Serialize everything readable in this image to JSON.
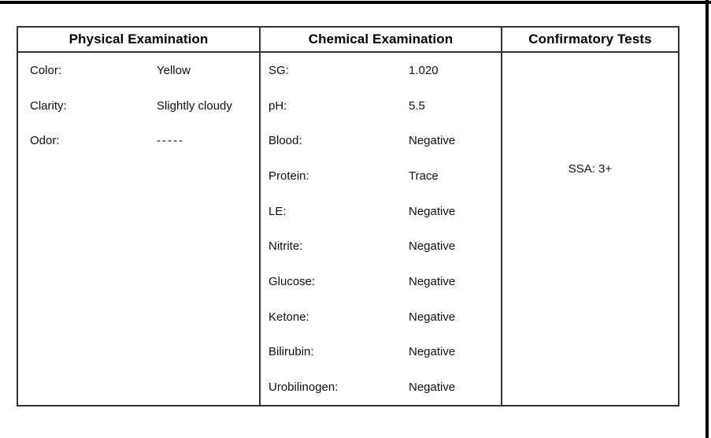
{
  "colors": {
    "frame_line": "#000000",
    "table_border": "#333333",
    "text": "#111111"
  },
  "table": {
    "physical": {
      "header": "Physical Examination",
      "rows": [
        {
          "label": "Color:",
          "value": "Yellow"
        },
        {
          "label": "Clarity:",
          "value": "Slightly cloudy"
        },
        {
          "label": "Odor:",
          "value": "-----"
        }
      ]
    },
    "chemical": {
      "header": "Chemical Examination",
      "rows": [
        {
          "label": "SG:",
          "value": "1.020"
        },
        {
          "label": "pH:",
          "value": "5.5"
        },
        {
          "label": "Blood:",
          "value": "Negative"
        },
        {
          "label": "Protein:",
          "value": "Trace"
        },
        {
          "label": "LE:",
          "value": "Negative"
        },
        {
          "label": "Nitrite:",
          "value": "Negative"
        },
        {
          "label": "Glucose:",
          "value": "Negative"
        },
        {
          "label": "Ketone:",
          "value": "Negative"
        },
        {
          "label": "Bilirubin:",
          "value": "Negative"
        },
        {
          "label": "Urobilinogen:",
          "value": "Negative"
        }
      ]
    },
    "confirmatory": {
      "header": "Confirmatory Tests",
      "result": "SSA: 3+"
    }
  }
}
